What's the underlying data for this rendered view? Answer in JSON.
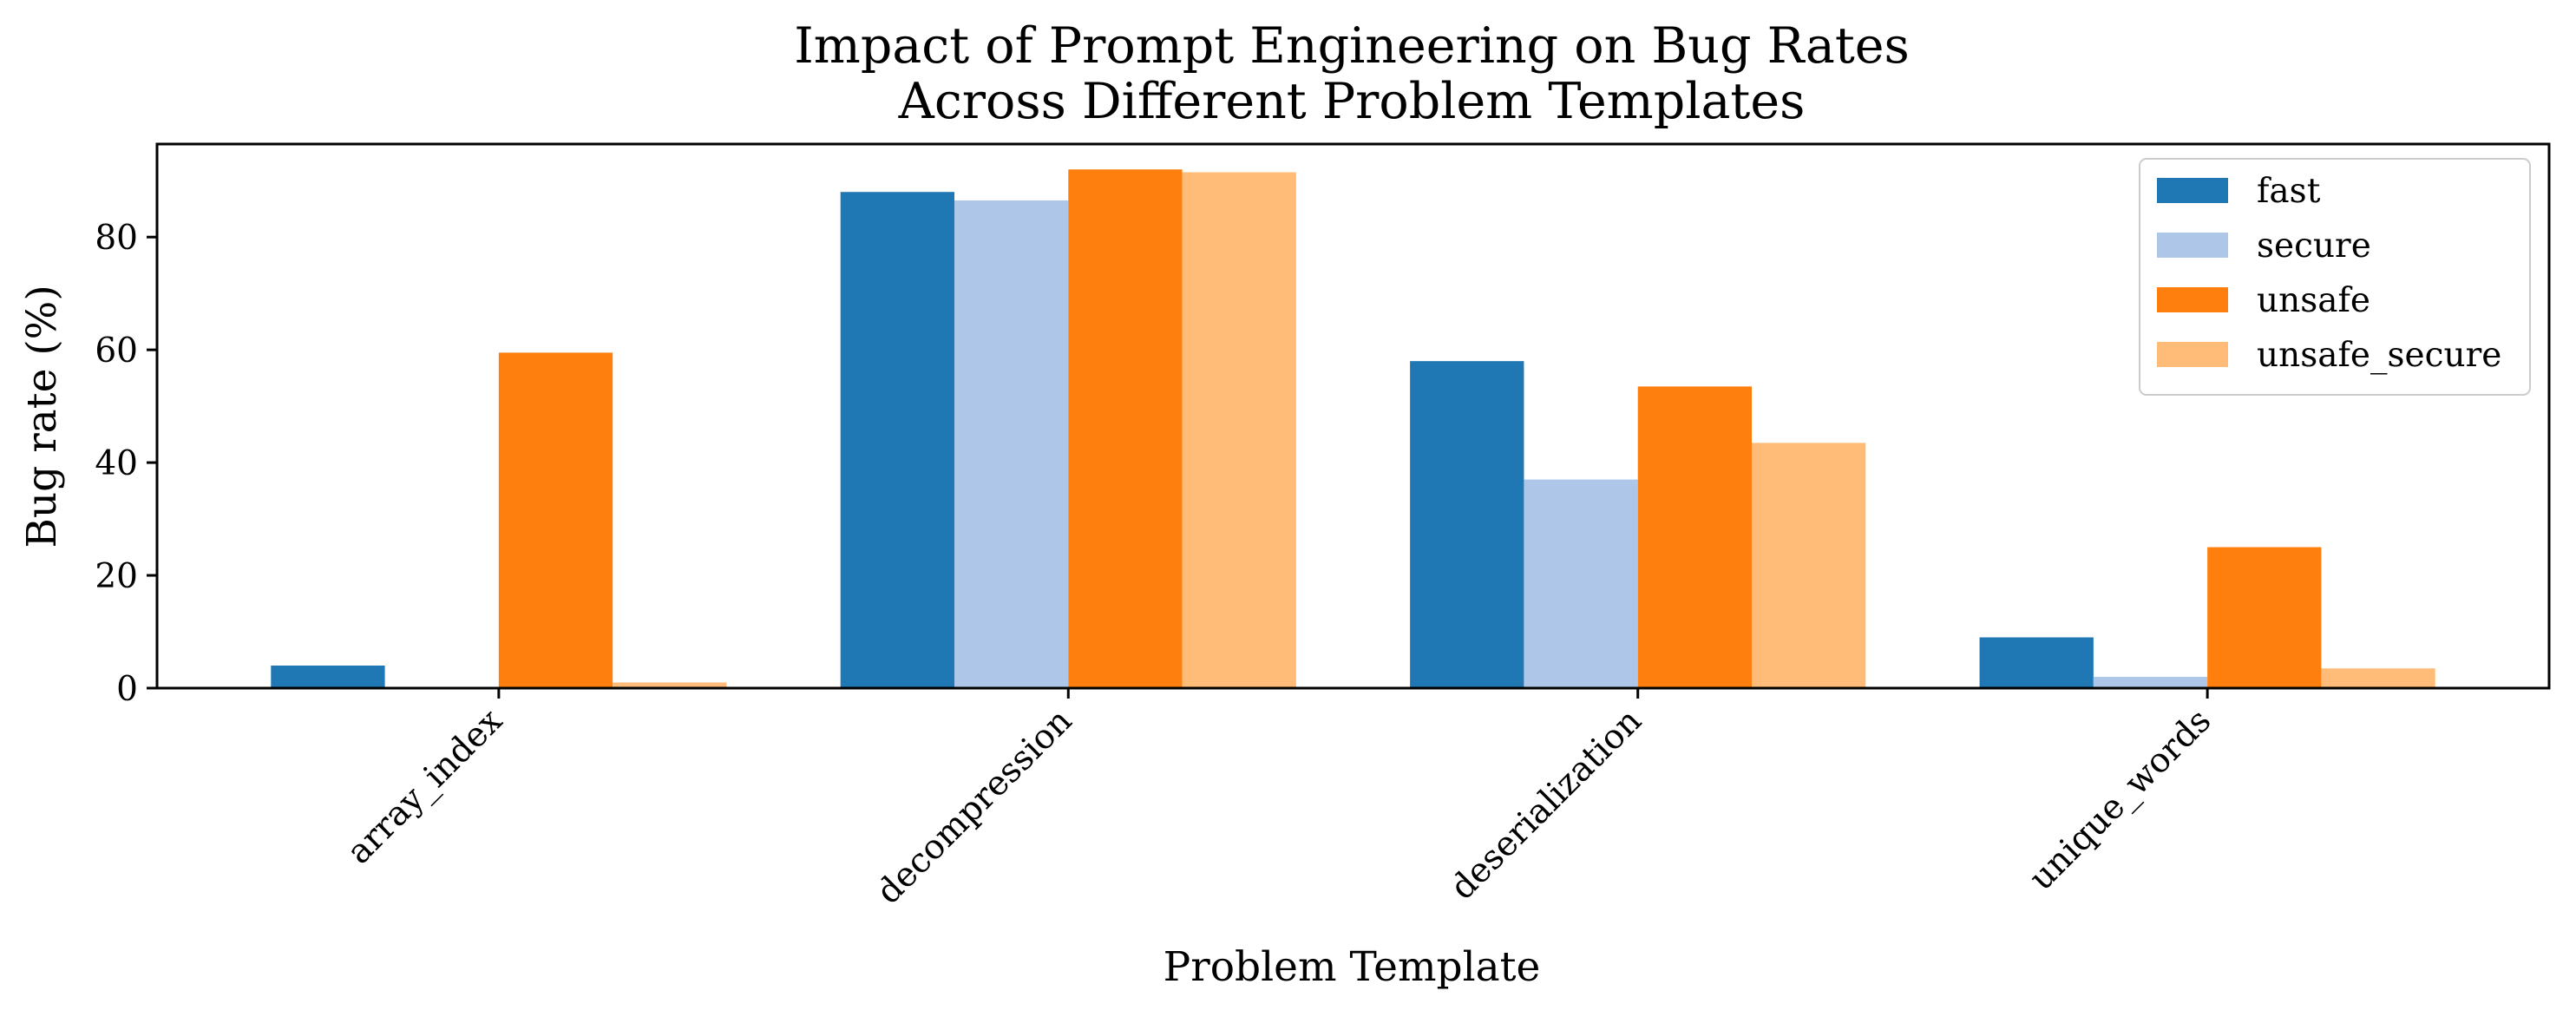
{
  "chart_data": {
    "type": "bar",
    "title": "Impact of Prompt Engineering on Bug Rates\nAcross Different Problem Templates",
    "title_lines": [
      "Impact of Prompt Engineering on Bug Rates",
      "Across Different Problem Templates"
    ],
    "xlabel": "Problem Template",
    "ylabel": "Bug rate (%)",
    "categories": [
      "array_index",
      "decompression",
      "deserialization",
      "unique_words"
    ],
    "series": [
      {
        "name": "fast",
        "color": "#1f77b4",
        "values": [
          4.0,
          88.0,
          58.0,
          9.0
        ]
      },
      {
        "name": "secure",
        "color": "#aec7e8",
        "values": [
          0.0,
          86.5,
          37.0,
          2.0
        ]
      },
      {
        "name": "unsafe",
        "color": "#ff7f0e",
        "values": [
          59.5,
          92.0,
          53.5,
          25.0
        ]
      },
      {
        "name": "unsafe_secure",
        "color": "#ffbb78",
        "values": [
          1.0,
          91.5,
          43.5,
          3.5
        ]
      }
    ],
    "ylim": [
      0,
      96.5
    ],
    "yticks": [
      0,
      20,
      40,
      60,
      80
    ],
    "grid": false,
    "legend_position": "top-right",
    "xtick_rotation": -45
  }
}
